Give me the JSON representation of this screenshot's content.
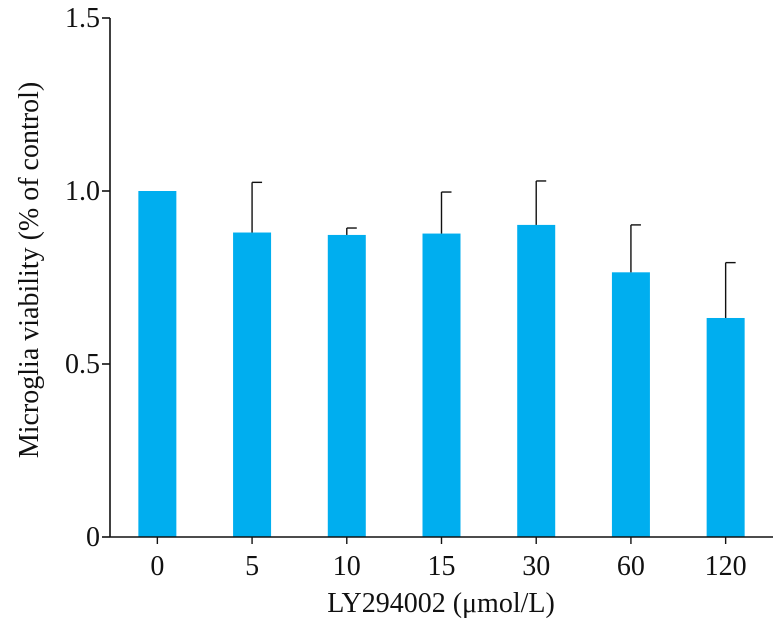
{
  "chart_data": {
    "type": "bar",
    "categories": [
      "0",
      "5",
      "10",
      "15",
      "30",
      "60",
      "120"
    ],
    "values": [
      1.0,
      0.88,
      0.873,
      0.877,
      0.902,
      0.765,
      0.633
    ],
    "error_plus": [
      0.0,
      0.145,
      0.02,
      0.12,
      0.127,
      0.137,
      0.16
    ],
    "xlabel": "LY294002 (μmol/L)",
    "ylabel": "Microglia viability (% of control)",
    "ylim": [
      0,
      1.5
    ],
    "yticks": [
      0,
      0.5,
      1.0,
      1.5
    ],
    "ytick_labels": [
      "0",
      "0.5",
      "1.0",
      "1.5"
    ],
    "grid": false,
    "colors": {
      "bar": "#00AEEF",
      "axis": "#111111"
    }
  }
}
